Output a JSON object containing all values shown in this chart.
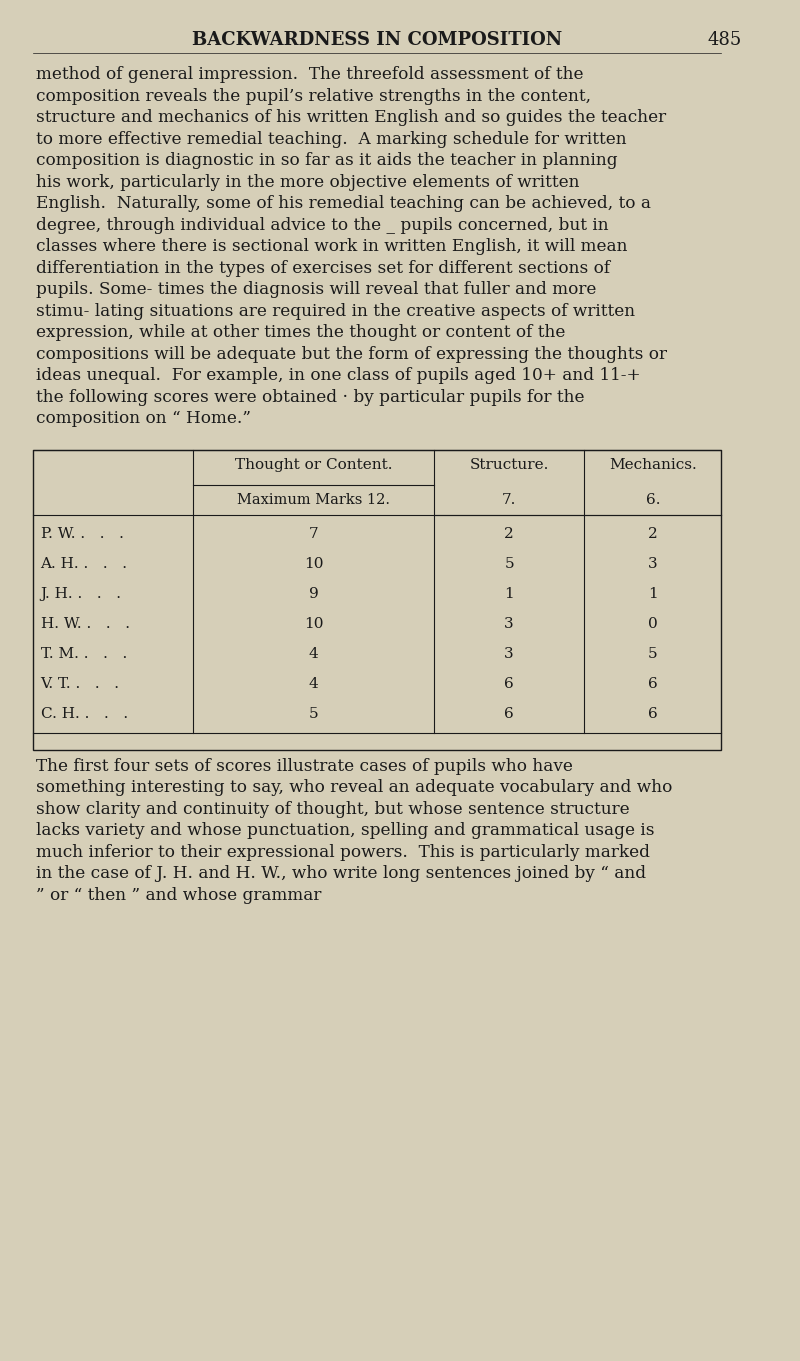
{
  "bg_color": "#d6cfb8",
  "text_color": "#1a1a1a",
  "page_title": "BACKWARDNESS IN COMPOSITION",
  "page_number": "485",
  "header_fontsize": 13,
  "body_fontsize": 12.5,
  "body_text_1": "method of general impression.  The threefold assessment of the composition reveals the pupil’s relative strengths in the content, structure and mechanics of his written English and so guides the teacher to more effective remedial teaching.  A marking schedule for written composition is diagnostic in so far as it aids the teacher in planning his work, particularly in the more objective elements of written English.  Naturally, some of his remedial teaching can be achieved, to a degree, through individual advice to the _ pupils concerned, but in classes where there is sectional work in written English, it will mean differentiation in the types of exercises set for different sections of pupils. Some- times the diagnosis will reveal that fuller and more stimu- lating situations are required in the creative aspects of written expression, while at other times the thought or content of the compositions will be adequate but the form of expressing the thoughts or ideas unequal.  For example, in one class of pupils aged 10+ and 11-+ the following scores were obtained · by particular pupils for the composition on “ Home.”",
  "table_col_headers": [
    "Thought or Content.",
    "Structure.",
    "Mechanics."
  ],
  "table_sub_headers": [
    "Maximum Marks 12.",
    "7.",
    "6."
  ],
  "table_rows": [
    [
      "P. W. .   .   .",
      "7",
      "2",
      "2"
    ],
    [
      "A. H. .   .   .",
      "10",
      "5",
      "3"
    ],
    [
      "J. H. .   .   .",
      "9",
      "1",
      "1"
    ],
    [
      "H. W. .   .   .",
      "10",
      "3",
      "0"
    ],
    [
      "T. M. .   .   .",
      "4",
      "3",
      "5"
    ],
    [
      "V. T. .   .   .",
      "4",
      "6",
      "6"
    ],
    [
      "C. H. .   .   .",
      "5",
      "6",
      "6"
    ]
  ],
  "body_text_2": "The first four sets of scores illustrate cases of pupils who have something interesting to say, who reveal an adequate vocabulary and who show clarity and continuity of thought, but whose sentence structure lacks variety and whose punctuation, spelling and grammatical usage is much inferior to their expressional powers.  This is particularly marked in the case of J. H. and H. W., who write long sentences joined by “ and ” or “ then ” and whose grammar"
}
